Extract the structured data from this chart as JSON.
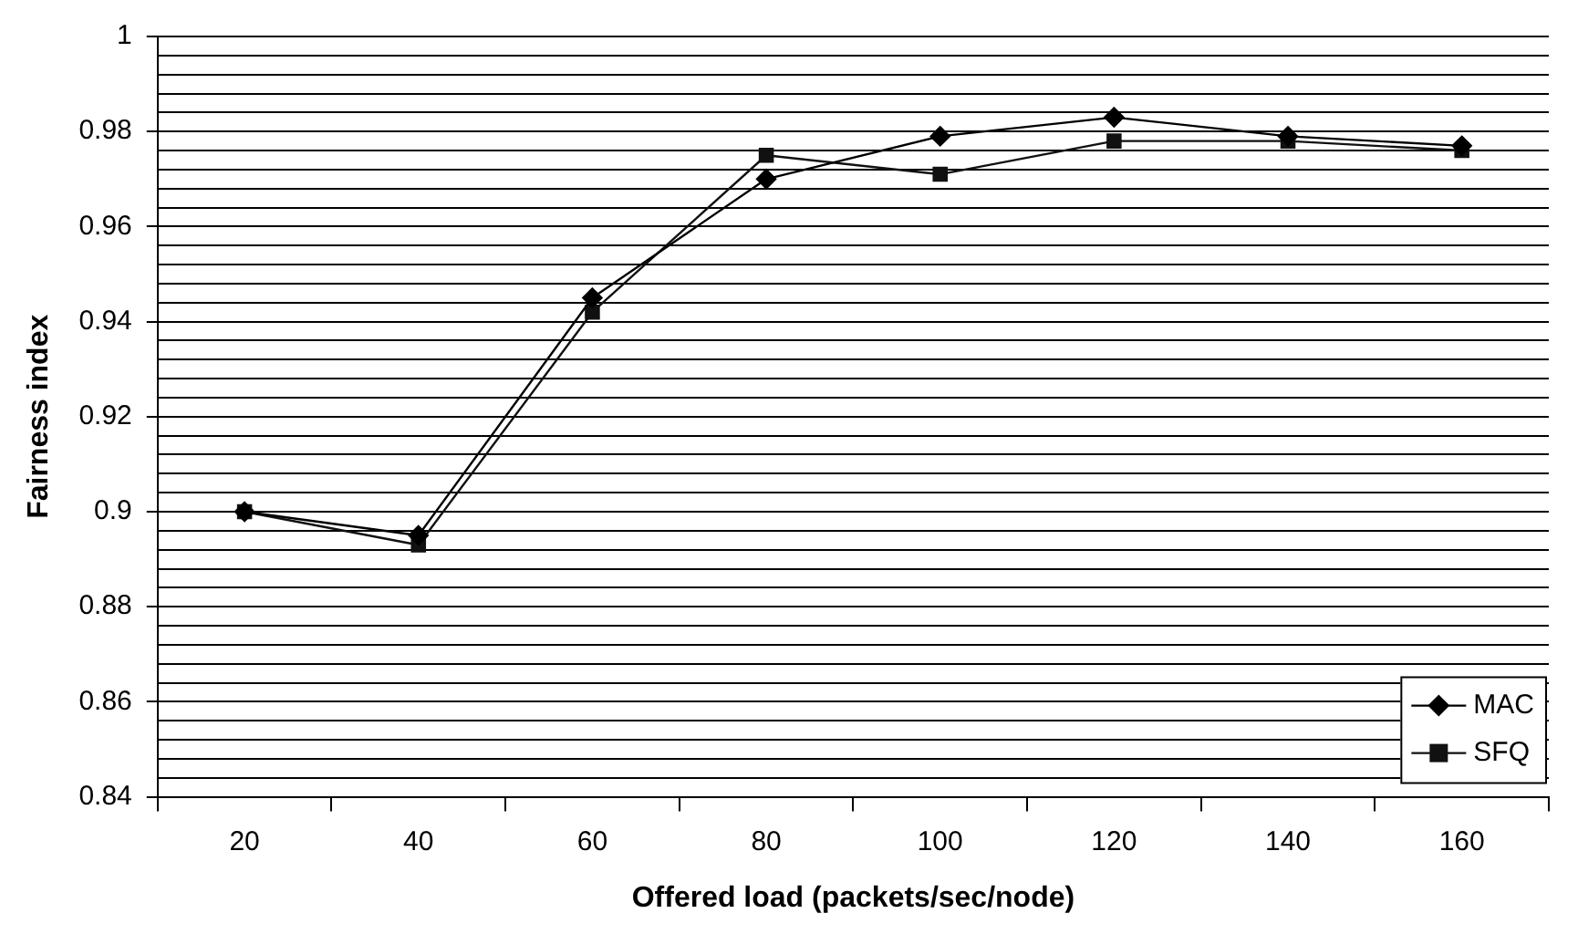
{
  "chart_data": {
    "type": "line",
    "xlabel": "Offered load (packets/sec/node)",
    "ylabel": "Fairness index",
    "categories": [
      "20",
      "40",
      "60",
      "80",
      "100",
      "120",
      "140",
      "160"
    ],
    "series": [
      {
        "name": "MAC",
        "color": "#000000",
        "marker": "diamond",
        "values": [
          0.9,
          0.895,
          0.945,
          0.97,
          0.979,
          0.983,
          0.979,
          0.977
        ]
      },
      {
        "name": "SFQ",
        "color": "#111111",
        "marker": "square",
        "values": [
          0.9,
          0.893,
          0.942,
          0.975,
          0.971,
          0.978,
          0.978,
          0.976
        ]
      }
    ],
    "ylim": [
      0.84,
      1
    ],
    "yticks": [
      0.84,
      {
        "value": 0.844,
        "label": null
      },
      {
        "value": 0.848,
        "label": null
      },
      {
        "value": 0.852,
        "label": null
      },
      {
        "value": 0.856,
        "label": null
      },
      0.86,
      {
        "value": 0.864,
        "label": null
      },
      {
        "value": 0.868,
        "label": null
      },
      {
        "value": 0.872,
        "label": null
      },
      {
        "value": 0.876,
        "label": null
      },
      0.88,
      {
        "value": 0.884,
        "label": null
      },
      {
        "value": 0.888,
        "label": null
      },
      {
        "value": 0.892,
        "label": null
      },
      {
        "value": 0.896,
        "label": null
      },
      0.9,
      {
        "value": 0.904,
        "label": null
      },
      {
        "value": 0.908,
        "label": null
      },
      {
        "value": 0.912,
        "label": null
      },
      {
        "value": 0.916,
        "label": null
      },
      0.92,
      {
        "value": 0.924,
        "label": null
      },
      {
        "value": 0.928,
        "label": null
      },
      {
        "value": 0.932,
        "label": null
      },
      {
        "value": 0.936,
        "label": null
      },
      0.94,
      {
        "value": 0.944,
        "label": null
      },
      {
        "value": 0.948,
        "label": null
      },
      {
        "value": 0.952,
        "label": null
      },
      {
        "value": 0.956,
        "label": null
      },
      0.96,
      {
        "value": 0.964,
        "label": null
      },
      {
        "value": 0.968,
        "label": null
      },
      {
        "value": 0.972,
        "label": null
      },
      {
        "value": 0.976,
        "label": null
      },
      0.98,
      {
        "value": 0.984,
        "label": null
      },
      {
        "value": 0.988,
        "label": null
      },
      {
        "value": 0.992,
        "label": null
      },
      {
        "value": 0.996,
        "label": null
      },
      1
    ],
    "grid": "y",
    "legend": "bottom right",
    "line_style": "solid"
  }
}
